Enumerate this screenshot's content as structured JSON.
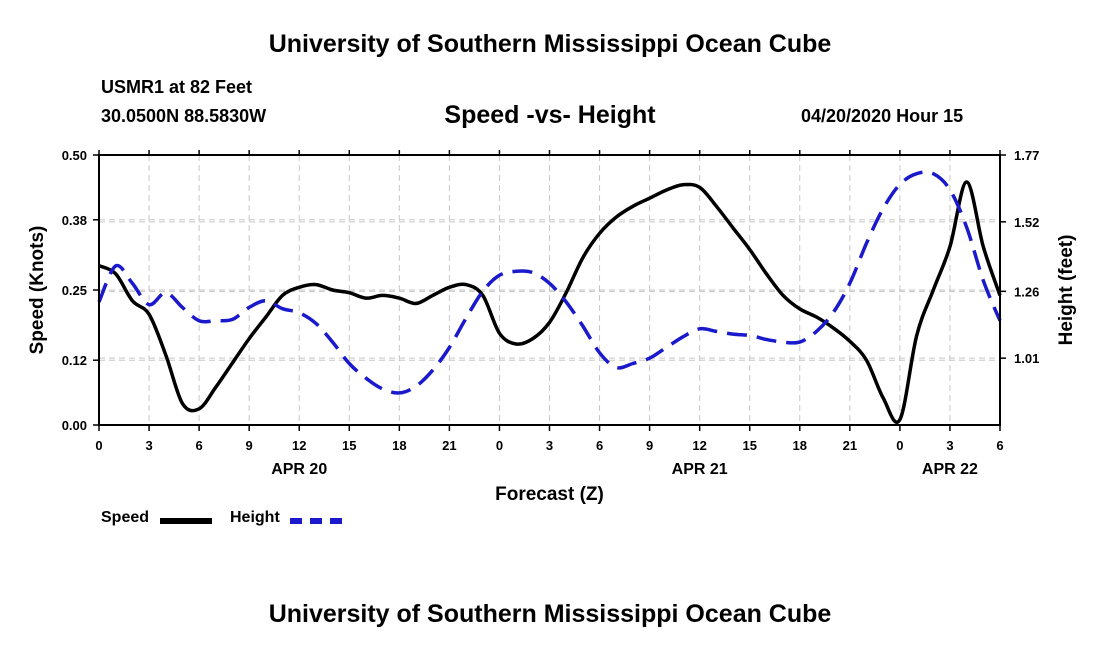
{
  "header": {
    "title_top": "University of Southern Mississippi Ocean Cube",
    "title_bottom": "University of Southern Mississippi Ocean Cube",
    "station": "USMR1 at 82 Feet",
    "coords": "30.0500N 88.5830W",
    "timestamp": "04/20/2020 Hour 15"
  },
  "legend": {
    "speed_label": "Speed",
    "height_label": "Height"
  },
  "colors": {
    "speed": "#000000",
    "height": "#1a1acc",
    "grid": "#c8c8c8"
  },
  "chart_data": {
    "type": "line",
    "title": "Speed -vs- Height",
    "xlabel": "Forecast (Z)",
    "ylabel": "Speed (Knots)",
    "y2label": "Height (feet)",
    "xlim": [
      0,
      54
    ],
    "ylim": [
      0.0,
      0.5
    ],
    "y2lim": [
      0.76,
      1.77
    ],
    "x_ticks": [
      0,
      3,
      6,
      9,
      12,
      15,
      18,
      21,
      24,
      27,
      30,
      33,
      36,
      39,
      42,
      45,
      48,
      51,
      54
    ],
    "x_tick_labels": [
      "0",
      "3",
      "6",
      "9",
      "12",
      "15",
      "18",
      "21",
      "0",
      "3",
      "6",
      "9",
      "12",
      "15",
      "18",
      "21",
      "0",
      "3",
      "6"
    ],
    "y_ticks": [
      0.0,
      0.12,
      0.25,
      0.38,
      0.5
    ],
    "y_tick_labels": [
      "0.00",
      "0.12",
      "0.25",
      "0.38",
      "0.50"
    ],
    "y2_ticks": [
      1.01,
      1.26,
      1.52,
      1.77
    ],
    "y2_tick_labels": [
      "1.01",
      "1.26",
      "1.52",
      "1.77"
    ],
    "day_labels": [
      {
        "x": 12,
        "label": "APR 20"
      },
      {
        "x": 36,
        "label": "APR 21"
      },
      {
        "x": 51,
        "label": "APR 22"
      }
    ],
    "grid": true,
    "series": [
      {
        "name": "Speed",
        "axis": "left",
        "x": [
          0,
          1,
          2,
          3,
          4,
          5,
          6,
          7,
          8,
          9,
          10,
          11,
          12,
          13,
          14,
          15,
          16,
          17,
          18,
          19,
          20,
          21,
          22,
          23,
          24,
          25,
          26,
          27,
          28,
          29,
          30,
          31,
          32,
          33,
          34,
          35,
          36,
          37,
          38,
          39,
          40,
          41,
          42,
          43,
          44,
          45,
          46,
          47,
          48,
          49,
          50,
          51,
          52,
          53,
          54
        ],
        "values": [
          0.295,
          0.28,
          0.23,
          0.205,
          0.13,
          0.04,
          0.03,
          0.07,
          0.115,
          0.16,
          0.2,
          0.24,
          0.255,
          0.26,
          0.25,
          0.245,
          0.235,
          0.24,
          0.235,
          0.225,
          0.24,
          0.255,
          0.26,
          0.24,
          0.17,
          0.15,
          0.16,
          0.19,
          0.245,
          0.31,
          0.355,
          0.385,
          0.405,
          0.42,
          0.435,
          0.445,
          0.44,
          0.405,
          0.365,
          0.325,
          0.28,
          0.24,
          0.215,
          0.2,
          0.18,
          0.155,
          0.12,
          0.05,
          0.01,
          0.165,
          0.25,
          0.33,
          0.45,
          0.33,
          0.24
        ]
      },
      {
        "name": "Height",
        "axis": "right",
        "x": [
          0,
          1,
          2,
          3,
          4,
          5,
          6,
          7,
          8,
          9,
          10,
          11,
          12,
          13,
          14,
          15,
          16,
          17,
          18,
          19,
          20,
          21,
          22,
          23,
          24,
          25,
          26,
          27,
          28,
          29,
          30,
          31,
          32,
          33,
          34,
          35,
          36,
          37,
          38,
          39,
          40,
          41,
          42,
          43,
          44,
          45,
          46,
          47,
          48,
          49,
          50,
          51,
          52,
          53,
          54
        ],
        "values": [
          1.22,
          1.355,
          1.29,
          1.21,
          1.255,
          1.2,
          1.15,
          1.15,
          1.155,
          1.2,
          1.225,
          1.195,
          1.18,
          1.14,
          1.07,
          0.99,
          0.935,
          0.895,
          0.88,
          0.905,
          0.965,
          1.05,
          1.16,
          1.26,
          1.32,
          1.335,
          1.33,
          1.29,
          1.22,
          1.13,
          1.03,
          0.975,
          0.99,
          1.01,
          1.05,
          1.09,
          1.12,
          1.11,
          1.1,
          1.095,
          1.08,
          1.07,
          1.07,
          1.11,
          1.18,
          1.29,
          1.44,
          1.57,
          1.66,
          1.7,
          1.7,
          1.64,
          1.5,
          1.3,
          1.15
        ]
      }
    ]
  }
}
